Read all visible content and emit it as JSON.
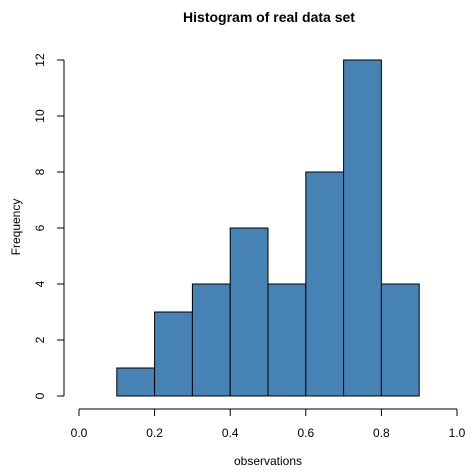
{
  "chart_data": {
    "type": "bar",
    "title": "Histogram of real data set",
    "xlabel": "observations",
    "ylabel": "Frequency",
    "bar_color": "#4682B4",
    "bins": [
      {
        "from": 0.1,
        "to": 0.2,
        "count": 1
      },
      {
        "from": 0.2,
        "to": 0.3,
        "count": 3
      },
      {
        "from": 0.3,
        "to": 0.4,
        "count": 4
      },
      {
        "from": 0.4,
        "to": 0.5,
        "count": 6
      },
      {
        "from": 0.5,
        "to": 0.6,
        "count": 4
      },
      {
        "from": 0.6,
        "to": 0.7,
        "count": 8
      },
      {
        "from": 0.7,
        "to": 0.8,
        "count": 12
      },
      {
        "from": 0.8,
        "to": 0.9,
        "count": 4
      }
    ],
    "xlim": [
      0.0,
      1.0
    ],
    "ylim": [
      0,
      12
    ],
    "x_ticks": [
      "0.0",
      "0.2",
      "0.4",
      "0.6",
      "0.8",
      "1.0"
    ],
    "y_ticks": [
      "0",
      "2",
      "4",
      "6",
      "8",
      "10",
      "12"
    ],
    "grid": false,
    "legend": "none"
  }
}
